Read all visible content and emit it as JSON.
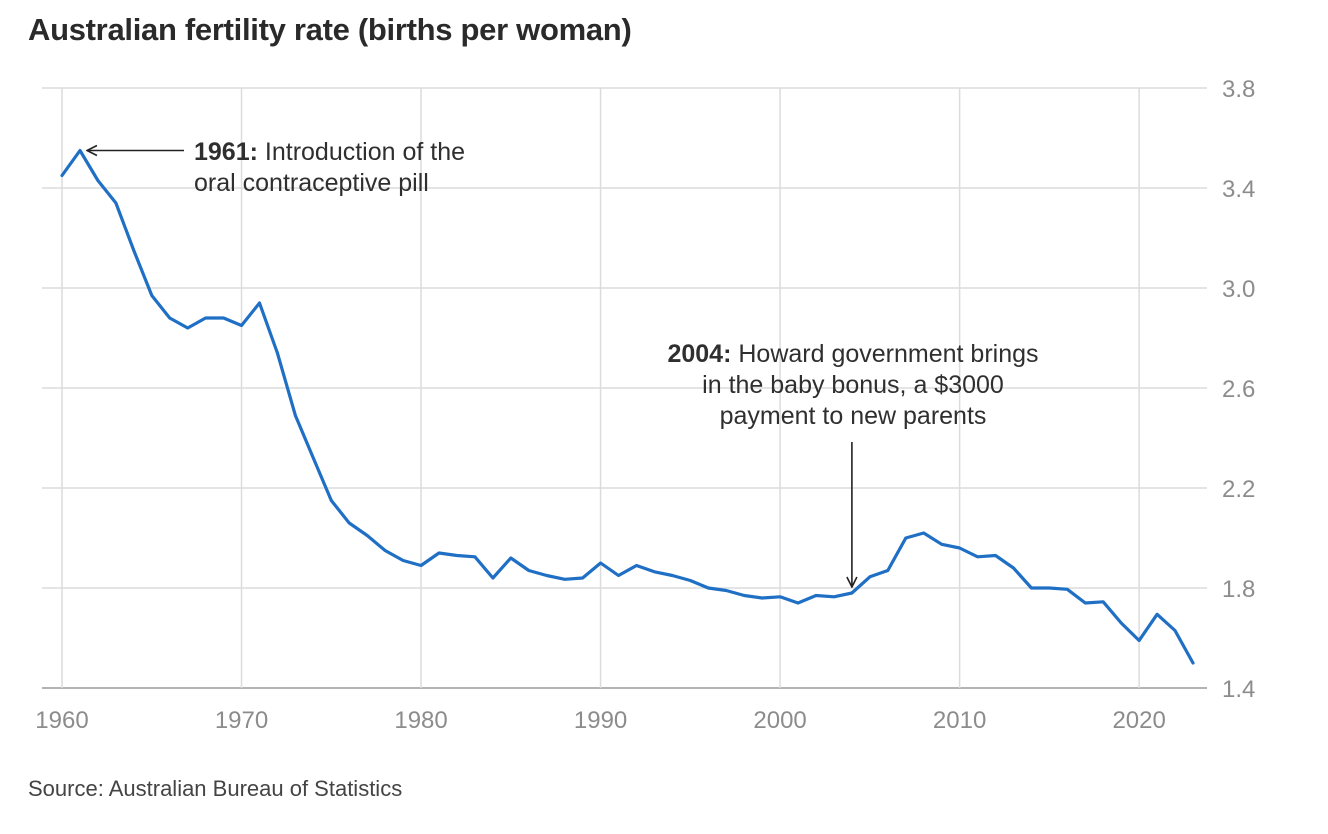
{
  "chart_data": {
    "type": "line",
    "title": "Australian fertility rate (births per woman)",
    "source": "Source: Australian Bureau of Statistics",
    "xlim": [
      1960,
      2023
    ],
    "ylim": [
      1.4,
      3.8
    ],
    "x_ticks": [
      1960,
      1970,
      1980,
      1990,
      2000,
      2010,
      2020
    ],
    "y_ticks": [
      1.4,
      1.8,
      2.2,
      2.6,
      3.0,
      3.4,
      3.8
    ],
    "y_tick_labels": [
      "1.4",
      "1.8",
      "2.2",
      "2.6",
      "3.0",
      "3.4",
      "3.8"
    ],
    "grid": true,
    "y_axis_side": "right",
    "line_color": "#1f6fc5",
    "series": [
      {
        "x": [
          1960,
          1961,
          1962,
          1963,
          1964,
          1965,
          1966,
          1967,
          1968,
          1969,
          1970,
          1971,
          1972,
          1973,
          1974,
          1975,
          1976,
          1977,
          1978,
          1979,
          1980,
          1981,
          1982,
          1983,
          1984,
          1985,
          1986,
          1987,
          1988,
          1989,
          1990,
          1991,
          1992,
          1993,
          1994,
          1995,
          1996,
          1997,
          1998,
          1999,
          2000,
          2001,
          2002,
          2003,
          2004,
          2005,
          2006,
          2007,
          2008,
          2009,
          2010,
          2011,
          2012,
          2013,
          2014,
          2015,
          2016,
          2017,
          2018,
          2019,
          2020,
          2021,
          2022,
          2023
        ],
        "values": [
          3.45,
          3.55,
          3.43,
          3.34,
          3.15,
          2.97,
          2.88,
          2.84,
          2.88,
          2.88,
          2.85,
          2.94,
          2.74,
          2.49,
          2.32,
          2.15,
          2.06,
          2.01,
          1.95,
          1.91,
          1.89,
          1.94,
          1.93,
          1.925,
          1.84,
          1.92,
          1.87,
          1.85,
          1.835,
          1.84,
          1.9,
          1.85,
          1.89,
          1.865,
          1.85,
          1.83,
          1.8,
          1.79,
          1.77,
          1.76,
          1.765,
          1.74,
          1.77,
          1.765,
          1.78,
          1.845,
          1.87,
          2.0,
          2.02,
          1.975,
          1.96,
          1.925,
          1.93,
          1.88,
          1.8,
          1.8,
          1.795,
          1.74,
          1.745,
          1.66,
          1.59,
          1.695,
          1.63,
          1.5
        ]
      }
    ],
    "annotations": [
      {
        "year": 1961,
        "bold": "1961:",
        "lines": [
          " Introduction of the",
          "oral contraceptive pill"
        ]
      },
      {
        "year": 2004,
        "bold": "2004:",
        "lines": [
          " Howard government brings",
          "in the baby bonus, a $3000",
          "payment to new parents"
        ]
      }
    ]
  }
}
